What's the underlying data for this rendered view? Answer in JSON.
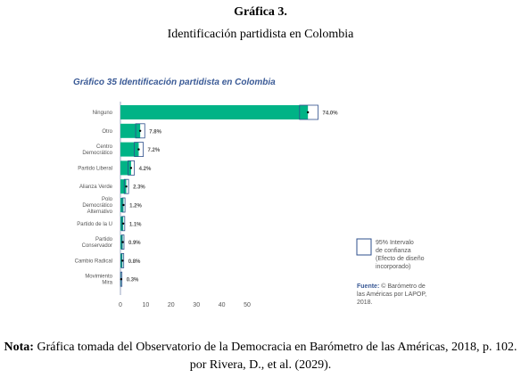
{
  "figure": {
    "label": "Gráfica 3.",
    "title": "Identificación partidista en Colombia"
  },
  "note": {
    "prefix": "Nota:",
    "text": " Gráfica tomada del Observatorio de la Democracia en Barómetro de las Américas, 2018, p. 102. por Rivera, D., et al. (2029)."
  },
  "colors": {
    "bar": "#00b386",
    "ci_box": "#2e4f8c",
    "title": "#3a5a96",
    "text": "#555555",
    "axis": "#9aa6c2"
  },
  "chart_data": {
    "type": "bar",
    "orientation": "horizontal",
    "title": "Gráfico 35 Identificación partidista en Colombia",
    "categories": [
      [
        "Ninguno"
      ],
      [
        "Otro"
      ],
      [
        "Centro",
        "Democrático"
      ],
      [
        "Partido Liberal"
      ],
      [
        "Alianza Verde"
      ],
      [
        "Polo",
        "Democrático",
        "Alternativo"
      ],
      [
        "Partido de la U"
      ],
      [
        "Partido",
        "Conservador"
      ],
      [
        "Cambio Radical"
      ],
      [
        "Movimiento",
        "Mira"
      ]
    ],
    "values": [
      74.0,
      7.8,
      7.2,
      4.2,
      2.3,
      1.2,
      1.1,
      0.9,
      0.8,
      0.3
    ],
    "value_labels": [
      "74.0%",
      "7.8%",
      "7.2%",
      "4.2%",
      "2.3%",
      "1.2%",
      "1.1%",
      "0.9%",
      "0.8%",
      "0.3%"
    ],
    "ci": [
      [
        70.7,
        78.0
      ],
      [
        6.0,
        9.6
      ],
      [
        5.5,
        9.0
      ],
      [
        3.0,
        5.5
      ],
      [
        1.5,
        3.2
      ],
      [
        0.7,
        1.8
      ],
      [
        0.6,
        1.7
      ],
      [
        0.5,
        1.4
      ],
      [
        0.4,
        1.3
      ],
      [
        0.05,
        0.6
      ]
    ],
    "xlim": [
      0,
      78
    ],
    "xticks": [
      0,
      10,
      20,
      30,
      40,
      50
    ],
    "legend": {
      "position": "right",
      "label": [
        "95% Intervalo",
        "de confianza",
        "(Efecto de diseño",
        "incorporado)"
      ]
    },
    "source": {
      "label": "Fuente:",
      "text": [
        "© Barómetro de",
        "las Américas por LAPOP,",
        "2018."
      ]
    }
  }
}
